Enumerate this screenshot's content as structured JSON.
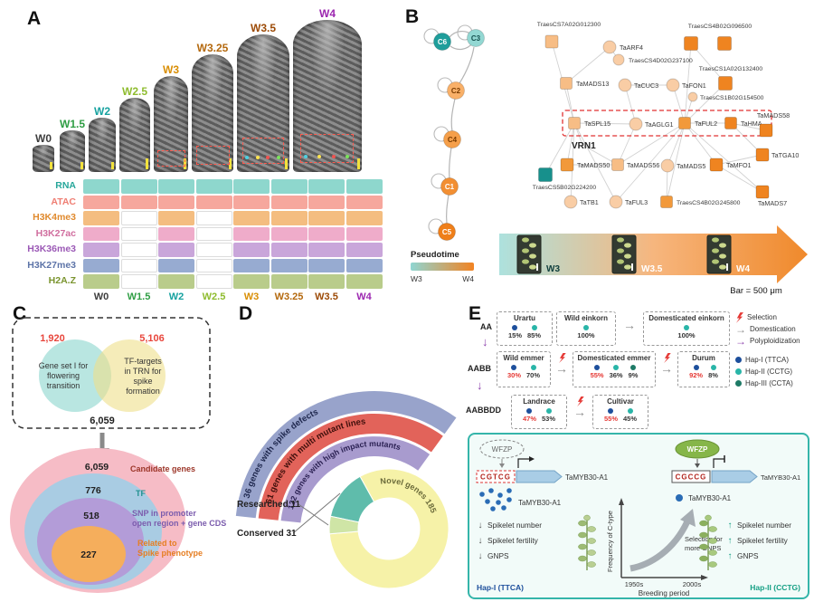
{
  "panels": {
    "a": "A",
    "b": "B",
    "c": "C",
    "d": "D",
    "e": "E"
  },
  "a": {
    "stages": [
      {
        "label": "W0",
        "color": "#3d3d3d"
      },
      {
        "label": "W1.5",
        "color": "#2f9e44"
      },
      {
        "label": "W2",
        "color": "#17a2a0"
      },
      {
        "label": "W2.5",
        "color": "#8fbc2f"
      },
      {
        "label": "W3",
        "color": "#d98e04"
      },
      {
        "label": "W3.25",
        "color": "#b4690e"
      },
      {
        "label": "W3.5",
        "color": "#9c4a06"
      },
      {
        "label": "W4",
        "color": "#9c27b0"
      }
    ],
    "assays": [
      {
        "label": "RNA",
        "label_color": "#26a69a",
        "cell_color": "#8ed7cd",
        "cells": [
          1,
          1,
          1,
          1,
          1,
          1,
          1,
          1
        ]
      },
      {
        "label": "ATAC",
        "label_color": "#ef7d72",
        "cell_color": "#f6a79d",
        "cells": [
          1,
          1,
          1,
          1,
          1,
          1,
          1,
          1
        ]
      },
      {
        "label": "H3K4me3",
        "label_color": "#e08a2e",
        "cell_color": "#f4bd80",
        "cells": [
          1,
          0,
          1,
          0,
          1,
          1,
          1,
          1
        ]
      },
      {
        "label": "H3K27ac",
        "label_color": "#d06d9e",
        "cell_color": "#efacca",
        "cells": [
          1,
          0,
          1,
          0,
          1,
          1,
          1,
          1
        ]
      },
      {
        "label": "H3K36me3",
        "label_color": "#9b59b6",
        "cell_color": "#c9a6da",
        "cells": [
          1,
          0,
          1,
          0,
          1,
          1,
          1,
          1
        ]
      },
      {
        "label": "H3K27me3",
        "label_color": "#5d74a8",
        "cell_color": "#97abd1",
        "cells": [
          1,
          0,
          1,
          0,
          1,
          1,
          1,
          1
        ]
      },
      {
        "label": "H2A.Z",
        "label_color": "#7a942e",
        "cell_color": "#b9cc8b",
        "cells": [
          1,
          0,
          1,
          0,
          1,
          1,
          1,
          1
        ]
      }
    ]
  },
  "b": {
    "clusters": [
      {
        "label": "C6",
        "fill": "#1f9e9b",
        "text": "#ffffff"
      },
      {
        "label": "C3",
        "fill": "#93d8d3",
        "text": "#14514f"
      },
      {
        "label": "C2",
        "fill": "#f9b068",
        "text": "#7a3c00"
      },
      {
        "label": "C4",
        "fill": "#f59f4a",
        "text": "#7a3c00"
      },
      {
        "label": "C1",
        "fill": "#f28f33",
        "text": "#ffffff"
      },
      {
        "label": "C5",
        "fill": "#ef7f1a",
        "text": "#ffffff"
      }
    ],
    "pseudotime": {
      "title": "Pseudotime",
      "min": "W3",
      "max": "W4",
      "from": "#8fd6d2",
      "to": "#f28322"
    },
    "network_nodes": [
      "TraesCS7A02G012300",
      "TaARF4",
      "TraesCS4B02G096500",
      "TraesCS4D02G237100",
      "TaMADS13",
      "TaCUC3",
      "TaFON1",
      "TraesCS1A02G132400",
      "TraesCS1B02G154500",
      "TaSPL15",
      "TaAGLG1",
      "TaFUL2",
      "TaHMA",
      "TaMADS58",
      "VRN1",
      "TaMADS50",
      "TaMADS56",
      "TaMADS5",
      "TaMFO1",
      "TaTGA10",
      "TraesCS5B02G224200",
      "TaTB1",
      "TaFUL3",
      "TraesCS4B02G245800",
      "TaMADS7"
    ],
    "timeline": {
      "stages": [
        "W3",
        "W3.5",
        "W4"
      ],
      "scalebar": "Bar = 500 μm"
    }
  },
  "c": {
    "venn": {
      "left_value": "1,920",
      "right_value": "5,106",
      "union_value": "6,059",
      "value_color": "#e8463c",
      "left_lines": [
        "Gene set I for",
        "flowering",
        "transition"
      ],
      "right_lines": [
        "TF-targets",
        "in TRN for",
        "spike",
        "formation"
      ]
    },
    "rings": [
      {
        "value": "6,059",
        "lines": [
          "Candidate genes"
        ],
        "fill": "#f6bcc6",
        "label_color": "#9c3528"
      },
      {
        "value": "776",
        "lines": [
          "TF"
        ],
        "fill": "#a9cce3",
        "label_color": "#1f8f8f"
      },
      {
        "value": "518",
        "lines": [
          "SNP in promoter",
          "open region + gene CDS"
        ],
        "fill": "#b39cd8",
        "label_color": "#7b5cad"
      },
      {
        "value": "227",
        "lines": [
          "Related to",
          "Spike phenotype"
        ],
        "fill": "#f5ae5c",
        "label_color": "#e67e22"
      }
    ]
  },
  "d": {
    "bands": [
      {
        "label": "36 genes with spike defects",
        "fill": "#98a3cb",
        "text": "#20294f"
      },
      {
        "label": "61 genes with multi mutant lines",
        "fill": "#e2635a",
        "text": "#3f0f0b"
      },
      {
        "label": "122 genes with high impact mutants",
        "fill": "#a89bce",
        "text": "#2b2153"
      }
    ],
    "donut": [
      {
        "label": "Novel genes 185",
        "fill": "#f6f2a8",
        "text": "#6b6b3a"
      },
      {
        "label": "Conserved 31",
        "fill": "#5fbcab"
      },
      {
        "label": "Researched 11",
        "fill": "#cfe5a6"
      }
    ],
    "callouts": [
      "Researched 11",
      "Conserved 31"
    ]
  },
  "e": {
    "legend": {
      "items": [
        {
          "label": "Selection"
        },
        {
          "label": "Domestication"
        },
        {
          "label": "Polyploidization"
        }
      ],
      "haps": [
        {
          "label": "Hap-I (TTCA)",
          "color": "#1d4f9c"
        },
        {
          "label": "Hap-II (CCTG)",
          "color": "#29b5a8"
        },
        {
          "label": "Hap-III (CCTA)",
          "color": "#1e7a66"
        }
      ]
    },
    "rows": [
      {
        "genome": "AA",
        "boxes": [
          {
            "title": "Urartu",
            "stats": [
              {
                "pct": "15%",
                "dot": "#1d4f9c",
                "red": false
              },
              {
                "pct": "85%",
                "dot": "#29b5a8",
                "red": false
              }
            ]
          },
          {
            "title": "Wild einkorn",
            "stats": [
              {
                "pct": "100%",
                "dot": "#29b5a8",
                "red": false
              }
            ]
          },
          {
            "title": "Domesticated einkorn",
            "stats": [
              {
                "pct": "100%",
                "dot": "#29b5a8",
                "red": false
              }
            ]
          }
        ]
      },
      {
        "genome": "AABB",
        "boxes": [
          {
            "title": "Wild emmer",
            "stats": [
              {
                "pct": "30%",
                "dot": "#1d4f9c",
                "red": true
              },
              {
                "pct": "70%",
                "dot": "#29b5a8",
                "red": false
              }
            ]
          },
          {
            "title": "Domesticated emmer",
            "stats": [
              {
                "pct": "55%",
                "dot": "#1d4f9c",
                "red": true
              },
              {
                "pct": "36%",
                "dot": "#29b5a8",
                "red": false
              },
              {
                "pct": "9%",
                "dot": "#1e7a66",
                "red": false
              }
            ]
          },
          {
            "title": "Durum",
            "stats": [
              {
                "pct": "92%",
                "dot": "#1d4f9c",
                "red": true
              },
              {
                "pct": "8%",
                "dot": "#29b5a8",
                "red": false
              }
            ]
          }
        ]
      },
      {
        "genome": "AABBDD",
        "boxes": [
          {
            "title": "Landrace",
            "stats": [
              {
                "pct": "47%",
                "dot": "#1d4f9c",
                "red": true
              },
              {
                "pct": "53%",
                "dot": "#29b5a8",
                "red": false
              }
            ]
          },
          {
            "title": "Cultivar",
            "stats": [
              {
                "pct": "55%",
                "dot": "#1d4f9c",
                "red": true
              },
              {
                "pct": "45%",
                "dot": "#29b5a8",
                "red": false
              }
            ]
          }
        ]
      }
    ],
    "mech": {
      "left": {
        "tf": "WFZP",
        "motif": "CGTCG",
        "gene": "TaMYB30-A1",
        "protein": "TaMYB30-A1",
        "traits": [
          "Spikelet number",
          "Spikelet fertility",
          "GNPS"
        ],
        "hap": "Hap-I (TTCA)"
      },
      "right": {
        "tf": "WFZP",
        "motif": "CGCCG",
        "gene": "TaMYB30-A1",
        "protein": "TaMYB30-A1",
        "traits": [
          "Spikelet number",
          "Spikelet fertility",
          "GNPS"
        ],
        "hap": "Hap-II (CCTG)"
      },
      "graph": {
        "ylabel": "Frequency of C-type",
        "xlabel": "Breeding period",
        "ticks": [
          "1950s",
          "2000s"
        ],
        "note": [
          "Selection for",
          "more GNPS"
        ]
      }
    }
  }
}
